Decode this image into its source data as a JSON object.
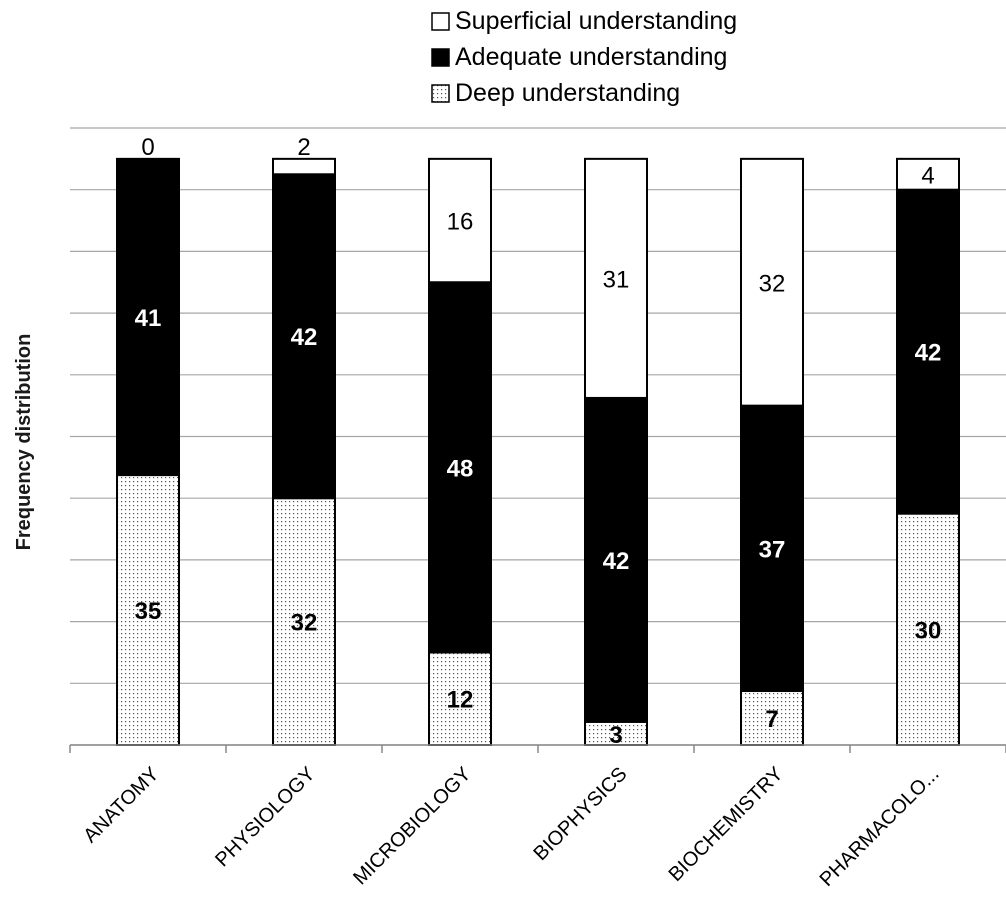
{
  "chart_data": {
    "type": "bar",
    "stacked": true,
    "ylabel": "Frequency distribution",
    "categories": [
      "ANATOMY",
      "PHYSIOLOGY",
      "MICROBIOLOGY",
      "BIOPHYSICS",
      "BIOCHEMISTRY",
      "PHARMACOLO..."
    ],
    "series": [
      {
        "name": "Deep understanding",
        "values": [
          35,
          32,
          12,
          3,
          7,
          30
        ],
        "fill": "dotted",
        "label_color": "#000000",
        "label_bold": true
      },
      {
        "name": "Adequate understanding",
        "values": [
          41,
          42,
          48,
          42,
          37,
          42
        ],
        "fill": "#000000",
        "label_color": "#ffffff",
        "label_bold": true
      },
      {
        "name": "Superficial understanding",
        "values": [
          0,
          2,
          16,
          31,
          32,
          4
        ],
        "fill": "#ffffff",
        "label_color": "#000000",
        "label_bold": false
      }
    ],
    "ylim": [
      0,
      80
    ],
    "grid": true,
    "legend_position": "top-right"
  }
}
